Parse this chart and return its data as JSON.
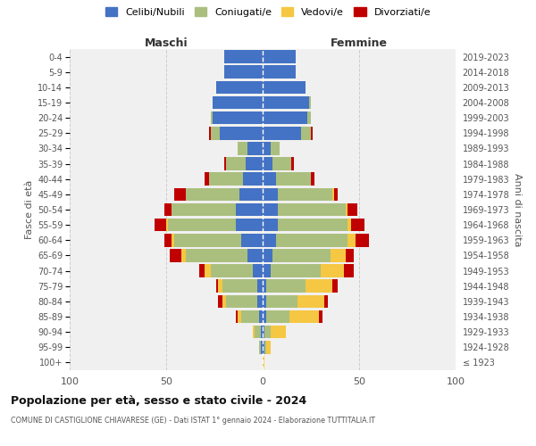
{
  "age_groups": [
    "100+",
    "95-99",
    "90-94",
    "85-89",
    "80-84",
    "75-79",
    "70-74",
    "65-69",
    "60-64",
    "55-59",
    "50-54",
    "45-49",
    "40-44",
    "35-39",
    "30-34",
    "25-29",
    "20-24",
    "15-19",
    "10-14",
    "5-9",
    "0-4"
  ],
  "birth_years": [
    "≤ 1923",
    "1924-1928",
    "1929-1933",
    "1934-1938",
    "1939-1943",
    "1944-1948",
    "1949-1953",
    "1954-1958",
    "1959-1963",
    "1964-1968",
    "1969-1973",
    "1974-1978",
    "1979-1983",
    "1984-1988",
    "1989-1993",
    "1994-1998",
    "1999-2003",
    "2004-2008",
    "2009-2013",
    "2014-2018",
    "2019-2023"
  ],
  "males": {
    "celibi": [
      0,
      1,
      1,
      2,
      3,
      3,
      5,
      8,
      11,
      14,
      14,
      12,
      10,
      9,
      8,
      22,
      26,
      26,
      24,
      20,
      20
    ],
    "coniugati": [
      0,
      1,
      3,
      9,
      16,
      18,
      22,
      32,
      35,
      35,
      33,
      28,
      18,
      10,
      5,
      5,
      1,
      0,
      0,
      0,
      0
    ],
    "vedovi": [
      0,
      0,
      1,
      2,
      2,
      2,
      3,
      2,
      1,
      1,
      0,
      0,
      0,
      0,
      0,
      0,
      0,
      0,
      0,
      0,
      0
    ],
    "divorziati": [
      0,
      0,
      0,
      1,
      2,
      1,
      3,
      6,
      4,
      6,
      4,
      6,
      2,
      1,
      0,
      1,
      0,
      0,
      0,
      0,
      0
    ]
  },
  "females": {
    "nubili": [
      0,
      1,
      1,
      2,
      2,
      2,
      4,
      5,
      7,
      8,
      8,
      8,
      7,
      5,
      4,
      20,
      23,
      24,
      22,
      17,
      17
    ],
    "coniugate": [
      0,
      1,
      3,
      12,
      16,
      20,
      26,
      30,
      37,
      36,
      35,
      28,
      18,
      10,
      5,
      5,
      2,
      1,
      0,
      0,
      0
    ],
    "vedove": [
      1,
      2,
      8,
      15,
      14,
      14,
      12,
      8,
      4,
      2,
      1,
      1,
      0,
      0,
      0,
      0,
      0,
      0,
      0,
      0,
      0
    ],
    "divorziate": [
      0,
      0,
      0,
      2,
      2,
      3,
      5,
      4,
      7,
      7,
      5,
      2,
      2,
      1,
      0,
      1,
      0,
      0,
      0,
      0,
      0
    ]
  },
  "colors": {
    "celibi": "#4472C4",
    "coniugati": "#AABF7E",
    "vedovi": "#F5C742",
    "divorziati": "#C00000"
  },
  "xlim": 100,
  "title": "Popolazione per età, sesso e stato civile - 2024",
  "subtitle": "COMUNE DI CASTIGLIONE CHIAVARESE (GE) - Dati ISTAT 1° gennaio 2024 - Elaborazione TUTTITALIA.IT",
  "ylabel_left": "Fasce di età",
  "ylabel_right": "Anni di nascita",
  "xlabel_left": "Maschi",
  "xlabel_right": "Femmine",
  "legend_labels": [
    "Celibi/Nubili",
    "Coniugati/e",
    "Vedovi/e",
    "Divorziati/e"
  ],
  "bg_color": "#ffffff",
  "plot_bg": "#f0f0f0"
}
